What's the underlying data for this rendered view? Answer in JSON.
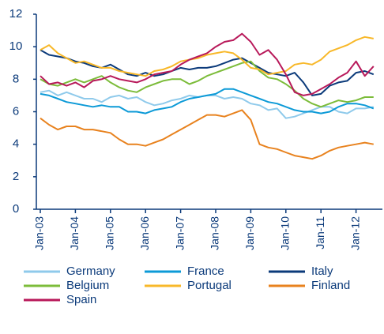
{
  "chart_data": {
    "type": "line",
    "categories": [
      "Jan-03",
      null,
      null,
      null,
      "Jan-04",
      null,
      null,
      null,
      "Jan-05",
      null,
      null,
      null,
      "Jan-06",
      null,
      null,
      null,
      "Jan-07",
      null,
      null,
      null,
      "Jan-08",
      null,
      null,
      null,
      "Jan-09",
      null,
      null,
      null,
      "Jan-10",
      null,
      null,
      null,
      "Jan-11",
      null,
      null,
      null,
      "Jan-12",
      null,
      null
    ],
    "series": [
      {
        "name": "Germany",
        "color": "#8fcaeb",
        "values": [
          7.2,
          7.3,
          7.0,
          7.2,
          7.0,
          6.8,
          6.8,
          6.6,
          6.9,
          7.0,
          6.8,
          6.9,
          6.6,
          6.4,
          6.5,
          6.7,
          6.8,
          7.0,
          6.9,
          7.0,
          7.0,
          6.8,
          6.9,
          6.8,
          6.5,
          6.4,
          6.1,
          6.2,
          5.6,
          5.7,
          5.9,
          6.1,
          6.3,
          6.3,
          6.0,
          5.9,
          6.2,
          6.2,
          6.3
        ]
      },
      {
        "name": "France",
        "color": "#0c9ad7",
        "values": [
          7.1,
          7.0,
          6.8,
          6.6,
          6.5,
          6.4,
          6.3,
          6.4,
          6.3,
          6.3,
          6.0,
          6.0,
          5.9,
          6.1,
          6.2,
          6.3,
          6.6,
          6.8,
          6.9,
          7.0,
          7.1,
          7.4,
          7.4,
          7.2,
          7.0,
          6.8,
          6.6,
          6.5,
          6.3,
          6.1,
          6.0,
          6.0,
          5.9,
          6.0,
          6.3,
          6.5,
          6.5,
          6.4,
          6.2
        ]
      },
      {
        "name": "Italy",
        "color": "#0b3a7a",
        "values": [
          9.8,
          9.5,
          9.4,
          9.3,
          9.1,
          9.0,
          8.8,
          8.7,
          8.9,
          8.6,
          8.3,
          8.2,
          8.4,
          8.2,
          8.3,
          8.5,
          8.7,
          8.6,
          8.7,
          8.7,
          8.8,
          9.0,
          9.2,
          9.3,
          9.0,
          8.7,
          8.4,
          8.3,
          8.2,
          8.4,
          7.8,
          7.0,
          7.1,
          7.6,
          7.8,
          7.9,
          8.4,
          8.5,
          8.3
        ]
      },
      {
        "name": "Belgium",
        "color": "#7cbc3a",
        "values": [
          8.0,
          7.7,
          7.6,
          7.8,
          8.0,
          7.8,
          8.0,
          8.2,
          7.8,
          7.5,
          7.3,
          7.2,
          7.5,
          7.7,
          7.9,
          8.0,
          8.0,
          7.7,
          7.9,
          8.2,
          8.4,
          8.6,
          8.8,
          9.0,
          9.1,
          8.5,
          8.1,
          8.0,
          7.7,
          7.3,
          6.8,
          6.5,
          6.3,
          6.5,
          6.7,
          6.6,
          6.7,
          6.9,
          6.9
        ]
      },
      {
        "name": "Portugal",
        "color": "#f8b829",
        "values": [
          9.8,
          10.1,
          9.6,
          9.3,
          9.0,
          9.1,
          8.9,
          8.7,
          8.7,
          8.5,
          8.4,
          8.3,
          8.2,
          8.5,
          8.6,
          8.8,
          9.1,
          9.2,
          9.3,
          9.5,
          9.6,
          9.7,
          9.6,
          9.2,
          8.7,
          8.6,
          8.3,
          8.4,
          8.5,
          8.9,
          9.0,
          8.9,
          9.2,
          9.7,
          9.9,
          10.1,
          10.4,
          10.6,
          10.5
        ]
      },
      {
        "name": "Finland",
        "color": "#e8821e",
        "values": [
          5.6,
          5.2,
          4.9,
          5.1,
          5.1,
          4.9,
          4.9,
          4.8,
          4.7,
          4.3,
          4.0,
          4.0,
          3.9,
          4.1,
          4.3,
          4.6,
          4.9,
          5.2,
          5.5,
          5.8,
          5.8,
          5.7,
          5.9,
          6.1,
          5.5,
          4.0,
          3.8,
          3.7,
          3.5,
          3.3,
          3.2,
          3.1,
          3.3,
          3.6,
          3.8,
          3.9,
          4.0,
          4.1,
          4.0
        ]
      },
      {
        "name": "Spain",
        "color": "#b8195a",
        "values": [
          8.2,
          7.7,
          7.8,
          7.6,
          7.8,
          7.5,
          7.9,
          8.0,
          8.2,
          8.0,
          7.9,
          7.8,
          8.0,
          8.3,
          8.4,
          8.5,
          8.9,
          9.2,
          9.4,
          9.6,
          10.0,
          10.3,
          10.4,
          10.8,
          10.3,
          9.5,
          9.8,
          9.2,
          8.3,
          7.2,
          7.0,
          7.1,
          7.4,
          7.7,
          8.1,
          8.4,
          9.1,
          8.2,
          8.8
        ]
      }
    ],
    "ylim": [
      0,
      12
    ],
    "yticks": [
      0,
      2,
      4,
      6,
      8,
      10,
      12
    ],
    "grid": false
  }
}
